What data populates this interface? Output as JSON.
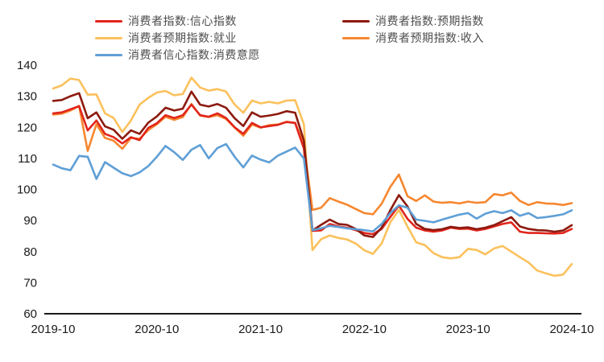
{
  "chart_data": {
    "type": "line",
    "title": "",
    "xlabel": "",
    "ylabel": "",
    "ylim": [
      60,
      140
    ],
    "y_ticks": [
      60,
      70,
      80,
      90,
      100,
      110,
      120,
      130,
      140
    ],
    "grid": false,
    "legend_position": "top",
    "x_tick_labels": [
      "2019-10",
      "2020-10",
      "2021-10",
      "2022-10",
      "2023-10",
      "2024-10"
    ],
    "x": [
      "2019-10",
      "2019-11",
      "2019-12",
      "2020-01",
      "2020-02",
      "2020-03",
      "2020-04",
      "2020-05",
      "2020-06",
      "2020-07",
      "2020-08",
      "2020-09",
      "2020-10",
      "2020-11",
      "2020-12",
      "2021-01",
      "2021-02",
      "2021-03",
      "2021-04",
      "2021-05",
      "2021-06",
      "2021-07",
      "2021-08",
      "2021-09",
      "2021-10",
      "2021-11",
      "2021-12",
      "2022-01",
      "2022-02",
      "2022-03",
      "2022-04",
      "2022-05",
      "2022-06",
      "2022-07",
      "2022-08",
      "2022-09",
      "2022-10",
      "2022-11",
      "2022-12",
      "2023-01",
      "2023-02",
      "2023-03",
      "2023-04",
      "2023-05",
      "2023-06",
      "2023-07",
      "2023-08",
      "2023-09",
      "2023-10",
      "2023-11",
      "2023-12",
      "2024-01",
      "2024-02",
      "2024-03",
      "2024-04",
      "2024-05",
      "2024-06",
      "2024-07",
      "2024-08",
      "2024-09",
      "2024-10"
    ],
    "series": [
      {
        "name": "消费者指数:信心指数",
        "color": "#e1251b",
        "legend_col": 0,
        "legend_row": 0,
        "values": [
          124.5,
          124.8,
          125.8,
          126.8,
          119.0,
          122.2,
          117.9,
          116.8,
          114.8,
          116.8,
          115.9,
          119.8,
          121.3,
          123.9,
          123.0,
          123.9,
          127.3,
          123.9,
          123.4,
          124.5,
          123.0,
          120.0,
          117.9,
          121.4,
          120.0,
          120.4,
          120.8,
          121.7,
          121.4,
          113.2,
          86.7,
          86.8,
          88.9,
          88.1,
          87.7,
          86.9,
          86.0,
          85.6,
          87.3,
          91.1,
          94.8,
          90.5,
          87.7,
          86.8,
          86.4,
          86.8,
          87.7,
          87.3,
          87.4,
          86.8,
          87.3,
          88.1,
          88.9,
          89.4,
          86.4,
          86.0,
          86.0,
          85.9,
          85.8,
          86.0,
          87.3
        ]
      },
      {
        "name": "消费者指数:预期指数",
        "color": "#8c1a0f",
        "legend_col": 1,
        "legend_row": 0,
        "values": [
          128.5,
          128.8,
          130.0,
          131.0,
          122.9,
          124.8,
          120.3,
          119.2,
          116.3,
          119.0,
          117.9,
          121.5,
          123.5,
          126.3,
          125.4,
          126.0,
          131.5,
          127.3,
          126.7,
          127.5,
          126.3,
          122.9,
          120.4,
          124.8,
          123.4,
          123.8,
          124.3,
          125.2,
          124.7,
          115.8,
          86.8,
          88.6,
          90.3,
          88.9,
          88.6,
          87.3,
          85.2,
          84.7,
          87.7,
          93.3,
          98.2,
          94.5,
          88.9,
          87.3,
          86.9,
          87.2,
          88.0,
          87.6,
          87.8,
          87.2,
          87.7,
          88.5,
          89.8,
          91.1,
          88.1,
          87.3,
          86.9,
          86.8,
          86.4,
          86.8,
          88.5
        ]
      },
      {
        "name": "消费者预期指数:就业",
        "color": "#fbc15c",
        "legend_col": 0,
        "legend_row": 1,
        "values": [
          132.5,
          133.5,
          135.7,
          135.2,
          130.5,
          130.6,
          124.5,
          123.0,
          118.5,
          122.2,
          127.3,
          129.5,
          131.2,
          131.7,
          130.3,
          130.7,
          136.0,
          132.8,
          131.8,
          132.3,
          131.5,
          127.3,
          124.7,
          128.6,
          127.7,
          128.2,
          127.7,
          128.6,
          128.7,
          121.0,
          80.5,
          84.0,
          85.2,
          84.4,
          83.9,
          82.6,
          80.4,
          79.3,
          82.6,
          89.4,
          93.4,
          88.0,
          83.0,
          82.1,
          79.5,
          78.2,
          77.8,
          78.2,
          80.9,
          80.5,
          79.1,
          81.0,
          81.8,
          80.0,
          78.2,
          76.5,
          73.9,
          73.0,
          72.2,
          72.6,
          76.0
        ]
      },
      {
        "name": "消费者预期指数:收入",
        "color": "#f6872f",
        "legend_col": 1,
        "legend_row": 1,
        "values": [
          124.1,
          124.4,
          125.4,
          126.9,
          112.4,
          121.0,
          116.6,
          115.7,
          113.1,
          116.6,
          116.3,
          119.1,
          121.0,
          123.4,
          122.4,
          123.3,
          127.5,
          123.8,
          123.3,
          123.9,
          122.7,
          119.9,
          117.3,
          120.9,
          119.9,
          120.7,
          120.9,
          121.8,
          121.4,
          114.5,
          93.4,
          94.1,
          97.2,
          96.1,
          95.1,
          93.7,
          92.4,
          92.0,
          95.4,
          100.8,
          104.8,
          97.8,
          96.3,
          98.1,
          96.1,
          95.7,
          95.9,
          95.5,
          96.1,
          95.7,
          95.9,
          98.5,
          98.1,
          99.0,
          96.3,
          95.0,
          95.9,
          95.5,
          95.4,
          95.0,
          95.6
        ]
      },
      {
        "name": "消费者信心指数:消费意愿",
        "color": "#5f9fd6",
        "legend_col": 0,
        "legend_row": 2,
        "values": [
          108.0,
          106.8,
          106.2,
          110.8,
          110.5,
          103.4,
          108.8,
          107.0,
          105.2,
          104.3,
          105.5,
          107.5,
          110.5,
          114.0,
          112.0,
          109.5,
          112.8,
          114.3,
          110.0,
          113.3,
          114.6,
          110.5,
          107.1,
          110.9,
          109.6,
          108.7,
          110.9,
          112.2,
          113.5,
          110.0,
          86.9,
          87.5,
          88.3,
          87.9,
          87.5,
          87.2,
          86.9,
          86.5,
          88.9,
          92.4,
          94.9,
          94.1,
          90.3,
          89.9,
          89.4,
          90.3,
          91.1,
          91.9,
          92.4,
          90.6,
          92.2,
          93.0,
          92.4,
          93.3,
          91.5,
          92.4,
          90.8,
          91.1,
          91.5,
          92.0,
          93.3
        ]
      }
    ],
    "axis_color": "#1a1a1a"
  }
}
